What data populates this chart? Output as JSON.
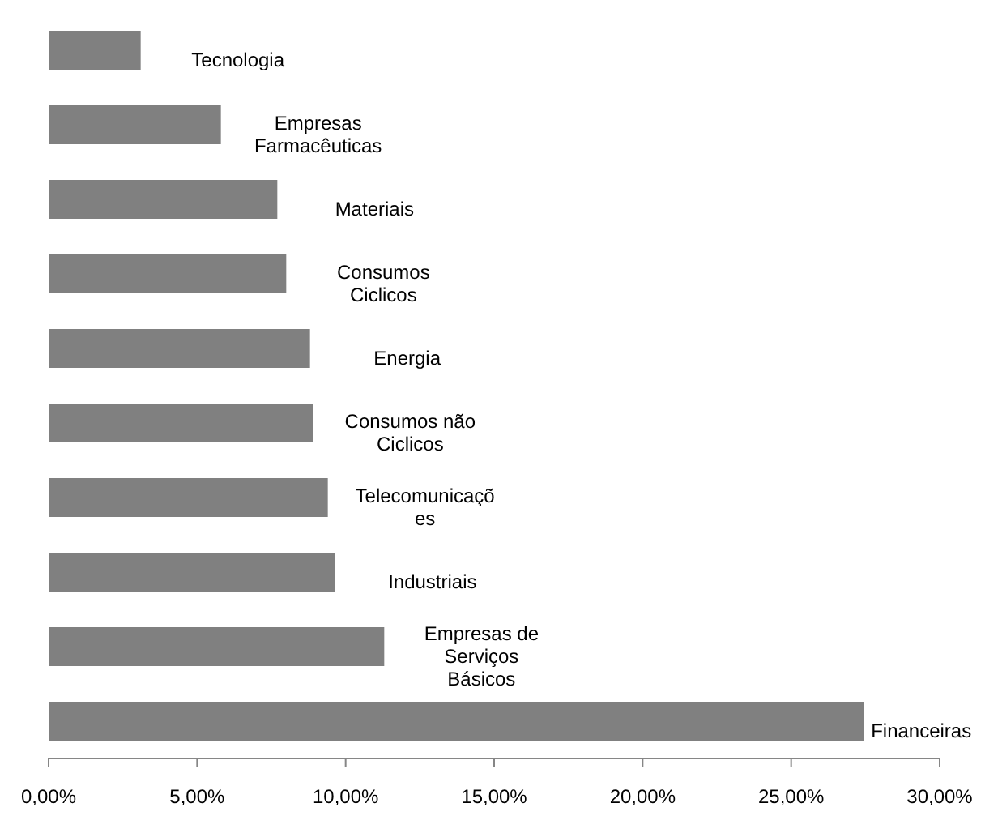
{
  "chart_data": {
    "type": "bar",
    "orientation": "horizontal",
    "categories": [
      "Tecnologia",
      "Empresas Farmacêuticas",
      "Materiais",
      "Consumos Ciclicos",
      "Energia",
      "Consumos não Ciclicos",
      "Telecomunicações",
      "Industriais",
      "Empresas de Serviços Básicos",
      "Financeiras"
    ],
    "values": [
      3.1,
      5.8,
      7.7,
      8.0,
      8.8,
      8.9,
      9.4,
      9.65,
      11.3,
      27.45
    ],
    "color": "#808080",
    "xlim": [
      0,
      30
    ],
    "xticks": [
      {
        "value": 0,
        "label": "0,00%"
      },
      {
        "value": 5,
        "label": "5,00%"
      },
      {
        "value": 10,
        "label": "10,00%"
      },
      {
        "value": 15,
        "label": "15,00%"
      },
      {
        "value": 20,
        "label": "20,00%"
      },
      {
        "value": 25,
        "label": "25,00%"
      },
      {
        "value": 30,
        "label": "30,00%"
      }
    ],
    "grid": false
  }
}
